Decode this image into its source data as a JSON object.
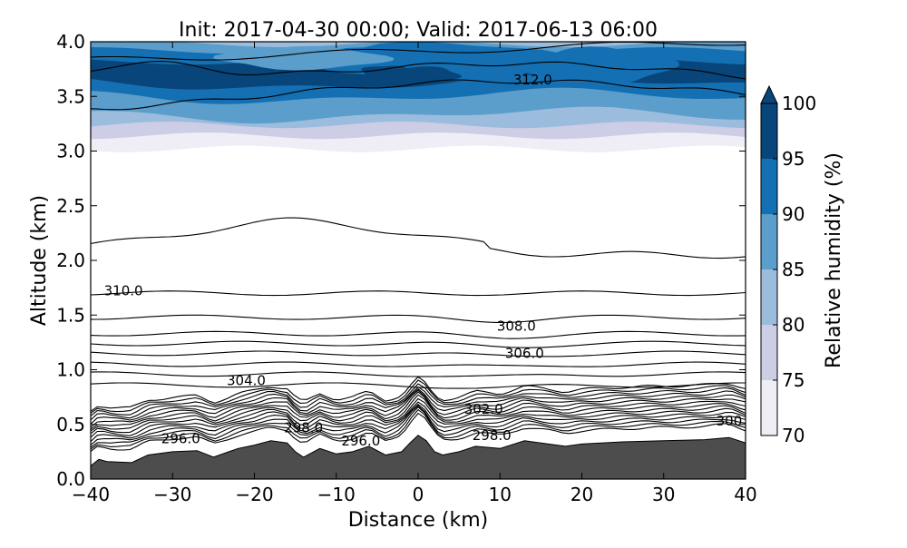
{
  "chart_data": {
    "type": "contour",
    "title": "Init: 2017-04-30 00:00; Valid: 2017-06-13 06:00",
    "xlabel": "Distance (km)",
    "ylabel": "Altitude (km)",
    "xlim": [
      -40,
      40
    ],
    "ylim": [
      0.0,
      4.0
    ],
    "x_ticks": [
      -40,
      -30,
      -20,
      -10,
      0,
      10,
      20,
      30,
      40
    ],
    "x_tick_labels": [
      "−40",
      "−30",
      "−20",
      "−10",
      "0",
      "10",
      "20",
      "30",
      "40"
    ],
    "y_ticks": [
      0.0,
      0.5,
      1.0,
      1.5,
      2.0,
      2.5,
      3.0,
      3.5,
      4.0
    ],
    "y_tick_labels": [
      "0.0",
      "0.5",
      "1.0",
      "1.5",
      "2.0",
      "2.5",
      "3.0",
      "3.5",
      "4.0"
    ],
    "filled_field": {
      "name": "Relative humidity (%)",
      "levels": [
        70,
        75,
        80,
        85,
        90,
        95,
        100
      ],
      "level_labels": [
        "70",
        "75",
        "80",
        "85",
        "90",
        "95",
        "100"
      ],
      "colors": [
        "#efedf5",
        "#cdcde5",
        "#9bbcdc",
        "#5b9dcb",
        "#1470b3",
        "#08457a"
      ],
      "extend": "max"
    },
    "colorbar": {
      "label": "Relative humidity (%)",
      "location": "right"
    },
    "terrain_color": "#4d4d4d",
    "terrain": {
      "x": [
        -40,
        -39,
        -38,
        -35,
        -33,
        -30,
        -27,
        -25,
        -22,
        -20,
        -18,
        -16,
        -15,
        -14,
        -12,
        -10,
        -8,
        -6,
        -4,
        -2,
        -1,
        0,
        1,
        2,
        3,
        5,
        7,
        10,
        13,
        15,
        18,
        20,
        25,
        30,
        35,
        38,
        40
      ],
      "y": [
        0.12,
        0.18,
        0.16,
        0.15,
        0.22,
        0.25,
        0.26,
        0.2,
        0.28,
        0.31,
        0.35,
        0.33,
        0.25,
        0.2,
        0.28,
        0.23,
        0.25,
        0.3,
        0.22,
        0.25,
        0.33,
        0.4,
        0.35,
        0.25,
        0.22,
        0.25,
        0.3,
        0.28,
        0.35,
        0.33,
        0.3,
        0.32,
        0.34,
        0.35,
        0.36,
        0.38,
        0.33
      ]
    },
    "contour_labels": [
      {
        "text": "312.0",
        "x": 14,
        "y": 3.65
      },
      {
        "text": "310.0",
        "x": -36,
        "y": 1.72
      },
      {
        "text": "308.0",
        "x": 12,
        "y": 1.4
      },
      {
        "text": "306.0",
        "x": 13,
        "y": 1.15
      },
      {
        "text": "304.0",
        "x": -21,
        "y": 0.9
      },
      {
        "text": "302.0",
        "x": 8,
        "y": 0.64
      },
      {
        "text": "298.0",
        "x": -14,
        "y": 0.47
      },
      {
        "text": "298.0",
        "x": 9,
        "y": 0.4
      },
      {
        "text": "296.0",
        "x": -29,
        "y": 0.37
      },
      {
        "text": "296.0",
        "x": -7,
        "y": 0.35
      },
      {
        "text": "300",
        "x": 38,
        "y": 0.53
      }
    ]
  }
}
